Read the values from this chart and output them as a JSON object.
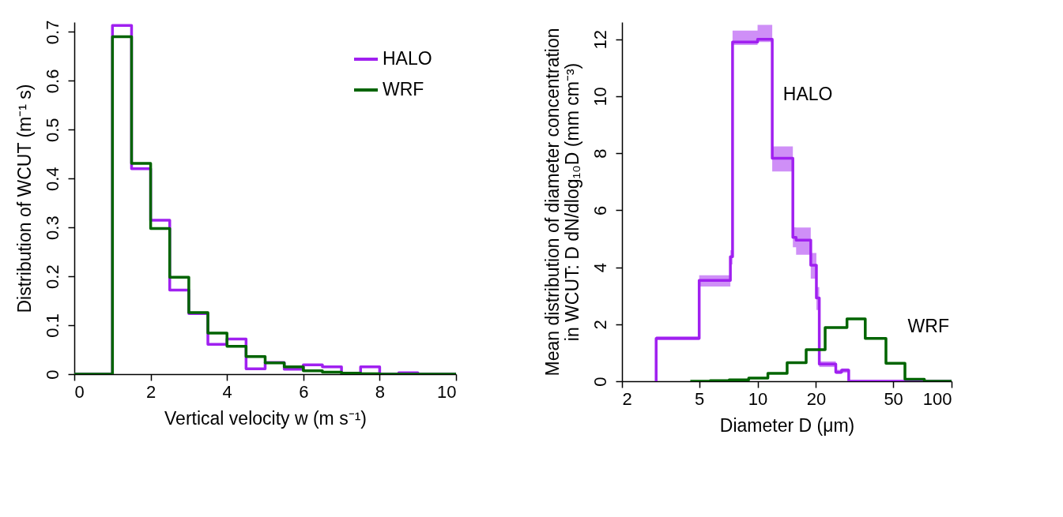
{
  "chart_data": [
    {
      "type": "histogram",
      "xlabel": "Vertical velocity w  (m s⁻¹)",
      "ylabel": "Distribution of WCUT  (m⁻¹ s)",
      "bins": [
        0,
        0.5,
        1,
        1.5,
        2,
        2.5,
        3,
        3.5,
        4,
        4.5,
        5,
        5.5,
        6,
        6.5,
        7,
        7.5,
        8,
        8.5,
        9,
        9.5,
        10
      ],
      "series": [
        {
          "name": "HALO",
          "color": "#a020f0",
          "values": [
            0,
            0,
            0.713,
            0.42,
            0.315,
            0.172,
            0.124,
            0.061,
            0.072,
            0.011,
            0.024,
            0.01,
            0.019,
            0.015,
            0.002,
            0.015,
            0,
            0.003,
            0,
            0
          ]
        },
        {
          "name": "WRF",
          "color": "#006400",
          "values": [
            0,
            0,
            0.69,
            0.431,
            0.298,
            0.198,
            0.126,
            0.084,
            0.057,
            0.036,
            0.023,
            0.015,
            0.007,
            0.004,
            0.002,
            0.001,
            0,
            0,
            0,
            0
          ]
        }
      ],
      "xlim": [
        0,
        10
      ],
      "xticks": [
        0,
        2,
        4,
        6,
        8,
        10
      ],
      "ylim": [
        0,
        0.72
      ],
      "yticks": [
        0,
        0.1,
        0.2,
        0.3,
        0.4,
        0.5,
        0.6,
        0.7
      ],
      "legend": "top right"
    },
    {
      "type": "step",
      "xlabel": "Diameter D  (μm)",
      "ylabel": "Mean distribution of diameter concentration\nin WCUT:  D dN/dlog₁₀D  (mm cm⁻³)",
      "log": "x",
      "series": [
        {
          "name": "HALO",
          "color": "#a020f0",
          "x": [
            3,
            3,
            5,
            7.24,
            7.43,
            10,
            11.9,
            15.2,
            15.8,
            18.8,
            20.1,
            20.8,
            25.3,
            27.1,
            29.5,
            100
          ],
          "values": [
            0,
            1.5,
            3.54,
            4.37,
            11.9,
            12.0,
            7.82,
            5.05,
            4.95,
            4.07,
            2.92,
            0.6,
            0.32,
            0.39,
            0,
            0
          ],
          "lower": [
            0,
            1.45,
            3.32,
            4.1,
            11.8,
            11.9,
            7.36,
            4.7,
            4.44,
            3.6,
            2.5,
            0.5,
            0.25,
            0.3,
            0,
            0
          ],
          "upper": [
            0,
            1.58,
            3.72,
            4.6,
            12.3,
            12.5,
            8.24,
            5.4,
            5.39,
            4.5,
            3.3,
            0.7,
            0.4,
            0.45,
            0,
            0
          ]
        },
        {
          "name": "WRF",
          "color": "#006400",
          "x": [
            4.5,
            5.7,
            7.14,
            9,
            11.3,
            14.2,
            17.8,
            22.3,
            28.9,
            35.9,
            45.9,
            57.5,
            72.4,
            100
          ],
          "values": [
            0,
            0.02,
            0.05,
            0.11,
            0.28,
            0.65,
            1.11,
            1.88,
            2.19,
            1.5,
            0.63,
            0.07,
            0,
            0
          ]
        }
      ],
      "xlim": [
        2,
        100
      ],
      "xticks": [
        2,
        5,
        10,
        20,
        50,
        100
      ],
      "ylim": [
        0,
        12.6
      ],
      "yticks": [
        0,
        2,
        4,
        6,
        8,
        10,
        12
      ]
    }
  ]
}
